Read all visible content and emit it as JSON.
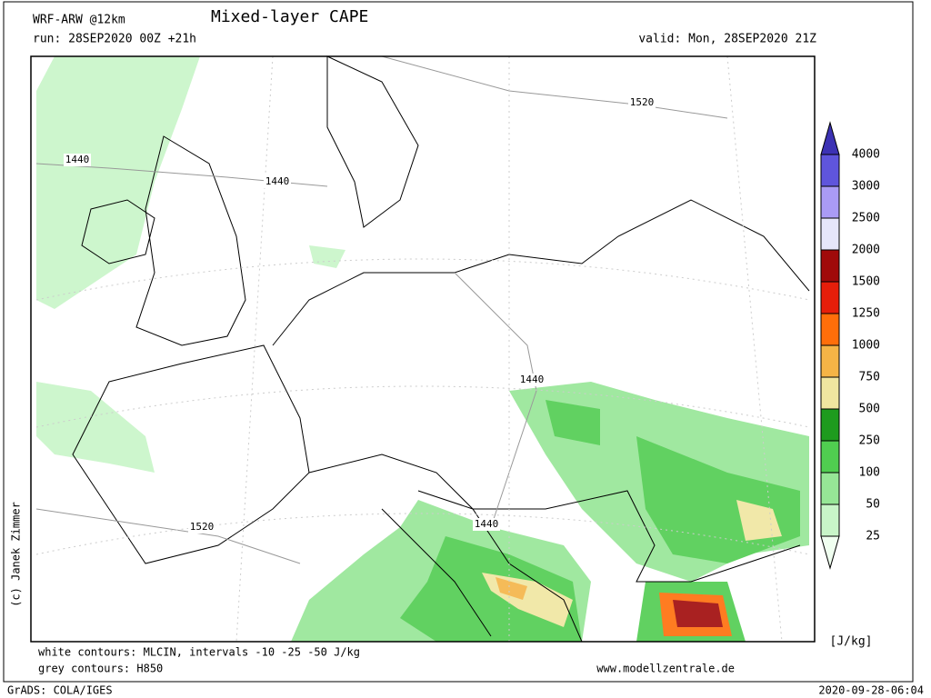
{
  "header": {
    "model": "WRF-ARW @12km",
    "title": "Mixed-layer CAPE",
    "run": "run: 28SEP2020 00Z +21h",
    "valid": "valid: Mon, 28SEP2020 21Z"
  },
  "map": {
    "contour_labels": [
      "1440",
      "1440",
      "1520",
      "1440",
      "1440",
      "1520"
    ]
  },
  "colorbar": {
    "labels": [
      "25",
      "50",
      "100",
      "250",
      "500",
      "750",
      "1000",
      "1250",
      "1500",
      "2000",
      "2500",
      "3000",
      "4000"
    ],
    "colors": [
      "#f0fff0",
      "#c8f5c8",
      "#96e696",
      "#50cd50",
      "#1e9b1e",
      "#f0e6a0",
      "#f5b446",
      "#ff6e0a",
      "#e61e0a",
      "#a00a0a",
      "#e6e6fa",
      "#aa9bf5",
      "#5f55dc",
      "#3c32b4"
    ],
    "unit": "[J/kg]"
  },
  "footer": {
    "line1": "white contours: MLCIN, intervals -10 -25 -50 J/kg",
    "line2": "grey contours: H850",
    "site": "www.modellzentrale.de",
    "credit": "(c) Janek Zimmer",
    "grads": "GrADS: COLA/IGES",
    "timestamp": "2020-09-28-06:04"
  }
}
